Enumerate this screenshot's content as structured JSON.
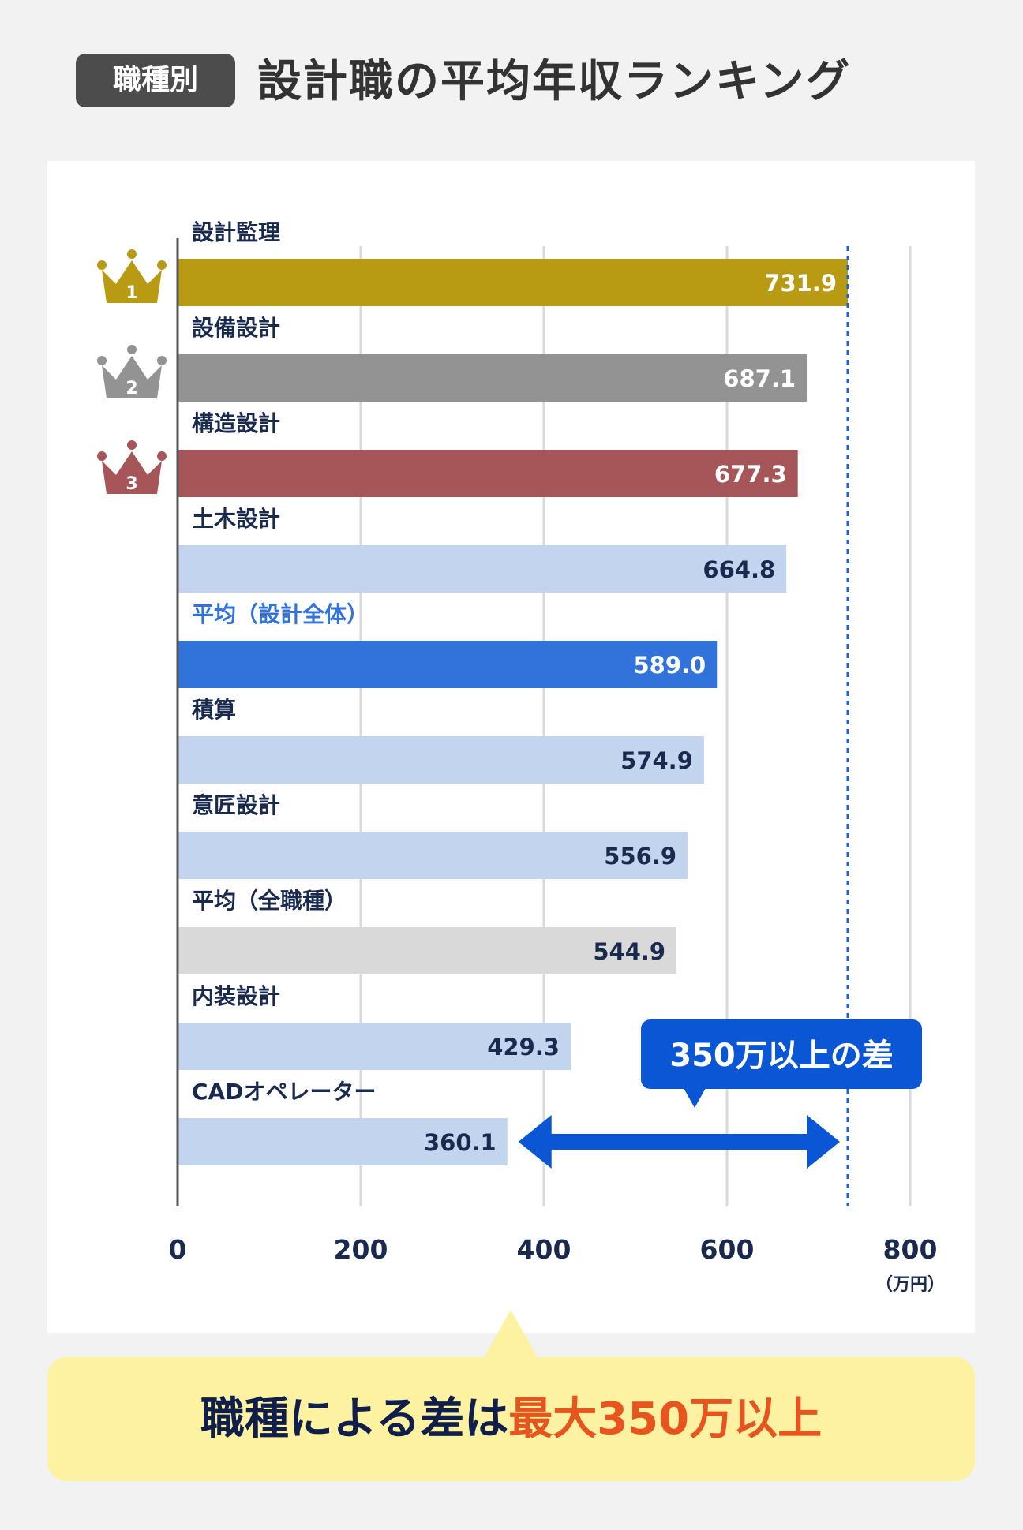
{
  "header": {
    "tag": "職種別",
    "title": "設計職の平均年収ランキング"
  },
  "chart_data": {
    "type": "bar",
    "orientation": "horizontal",
    "categories": [
      "設計監理",
      "設備設計",
      "構造設計",
      "土木設計",
      "平均（設計全体）",
      "積算",
      "意匠設計",
      "平均（全職種）",
      "内装設計",
      "CADオペレーター"
    ],
    "values": [
      731.9,
      687.1,
      677.3,
      664.8,
      589.0,
      574.9,
      556.9,
      544.9,
      429.3,
      360.1
    ],
    "value_labels": [
      "731.9",
      "687.1",
      "677.3",
      "664.8",
      "589.0",
      "574.9",
      "556.9",
      "544.9",
      "429.3",
      "360.1"
    ],
    "bar_colors": [
      "#b89b12",
      "#939393",
      "#a65558",
      "#c3d4ee",
      "#3173da",
      "#c3d4ee",
      "#c3d4ee",
      "#d9d9d9",
      "#c3d4ee",
      "#c3d4ee"
    ],
    "label_colors": [
      "#ffffff",
      "#ffffff",
      "#ffffff",
      "#1a2a4f",
      "#ffffff",
      "#1a2a4f",
      "#1a2a4f",
      "#1a2a4f",
      "#1a2a4f",
      "#1a2a4f"
    ],
    "category_label_colors": [
      "#1a2a4f",
      "#1a2a4f",
      "#1a2a4f",
      "#1a2a4f",
      "#3173da",
      "#1a2a4f",
      "#1a2a4f",
      "#1a2a4f",
      "#1a2a4f",
      "#1a2a4f"
    ],
    "ranks": [
      {
        "rank": "1",
        "color": "#b89b12"
      },
      {
        "rank": "2",
        "color": "#939393"
      },
      {
        "rank": "3",
        "color": "#a65558"
      }
    ],
    "xlim": [
      0,
      800
    ],
    "xticks": [
      "0",
      "200",
      "400",
      "600",
      "800"
    ],
    "xtick_values": [
      0,
      200,
      400,
      600,
      800
    ],
    "unit": "（万円）",
    "grid": true,
    "reference_line": 731.9,
    "annotation": {
      "text": "350万以上の差",
      "from": 360.1,
      "to": 731.9,
      "color": "#0a56d4"
    }
  },
  "callout": {
    "prefix": "職種による差は",
    "highlight": "最大350万以上"
  }
}
